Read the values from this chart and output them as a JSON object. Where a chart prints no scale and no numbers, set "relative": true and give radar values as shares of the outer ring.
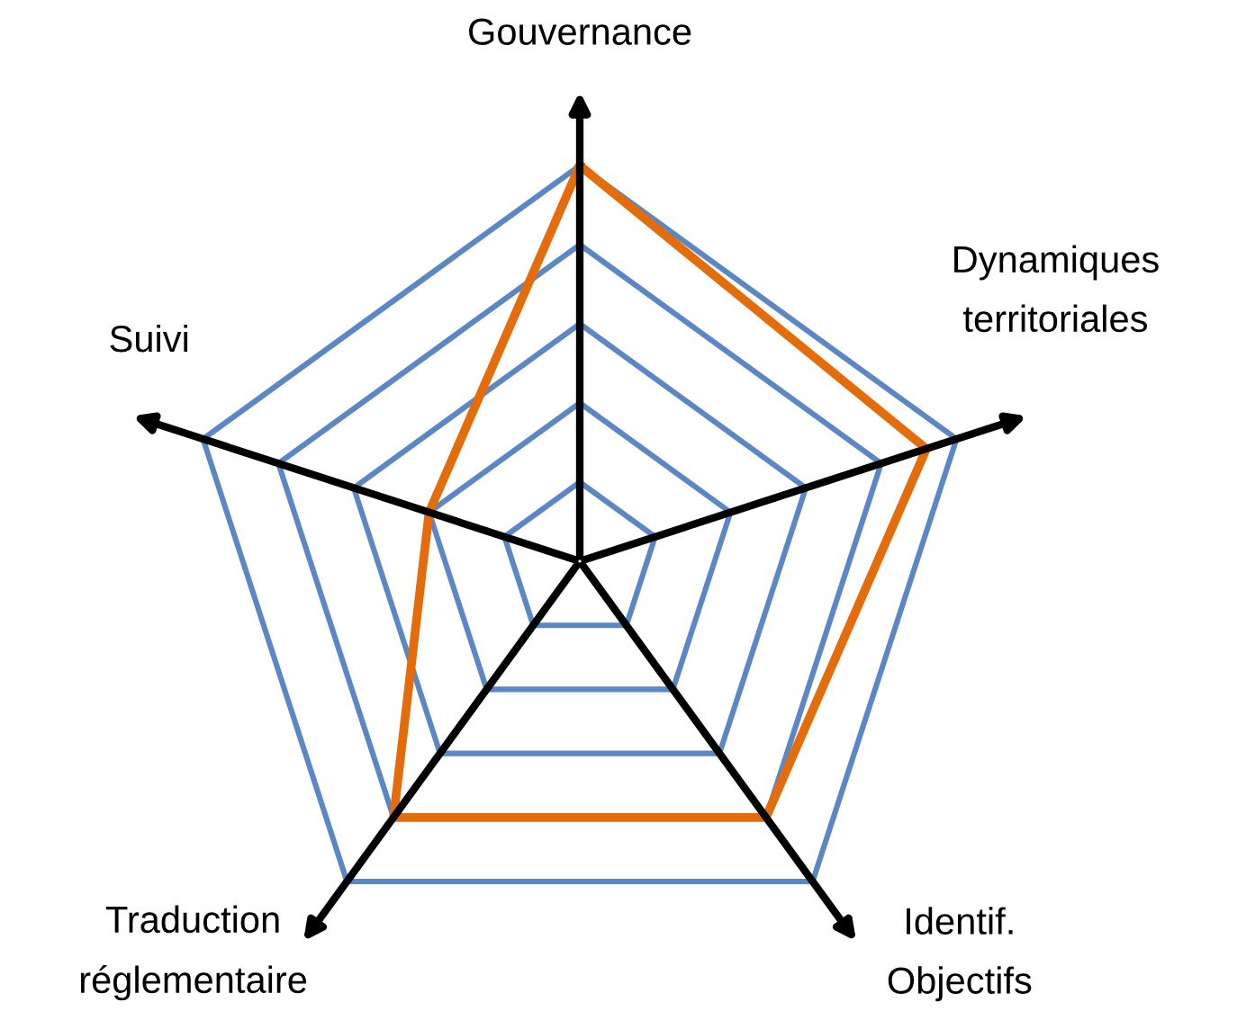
{
  "chart_data": {
    "type": "radar",
    "relative": true,
    "categories": [
      "Gouvernance",
      "Dynamiques\nterritoriales",
      "Identif.\nObjectifs",
      "Traduction\nréglementaire",
      "Suivi"
    ],
    "series": [
      {
        "color": "#e46c0a",
        "values": [
          1.0,
          0.92,
          0.8,
          0.8,
          0.4
        ]
      }
    ],
    "grid": true,
    "legend": false
  }
}
